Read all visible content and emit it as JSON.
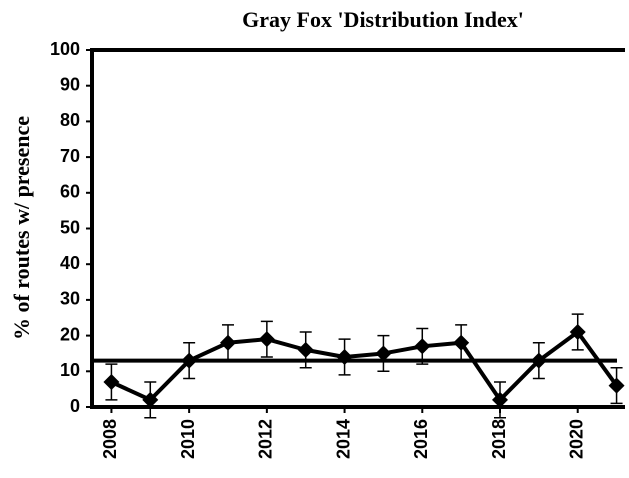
{
  "chart_data": {
    "type": "line",
    "title": "Gray Fox 'Distribution Index'",
    "y_label": "% of routes w/ presence",
    "x": [
      2008,
      2009,
      2010,
      2011,
      2012,
      2013,
      2014,
      2015,
      2016,
      2017,
      2018,
      2019,
      2020,
      2021
    ],
    "series": [
      {
        "color": "#000000",
        "values": [
          7,
          2,
          13,
          18,
          19,
          16,
          14,
          15,
          17,
          18,
          2,
          13,
          21,
          6
        ],
        "errors": [
          5,
          5,
          5,
          5,
          5,
          5,
          5,
          5,
          5,
          5,
          5,
          5,
          5,
          5
        ]
      }
    ],
    "reference_line": 13,
    "xlim": [
      2007.5,
      2021.5
    ],
    "xticks": [
      2008,
      2010,
      2012,
      2014,
      2016,
      2018,
      2020
    ],
    "ylim": [
      0,
      100
    ],
    "yticks": [
      0,
      10,
      20,
      30,
      40,
      50,
      60,
      70,
      80,
      90,
      100
    ]
  }
}
